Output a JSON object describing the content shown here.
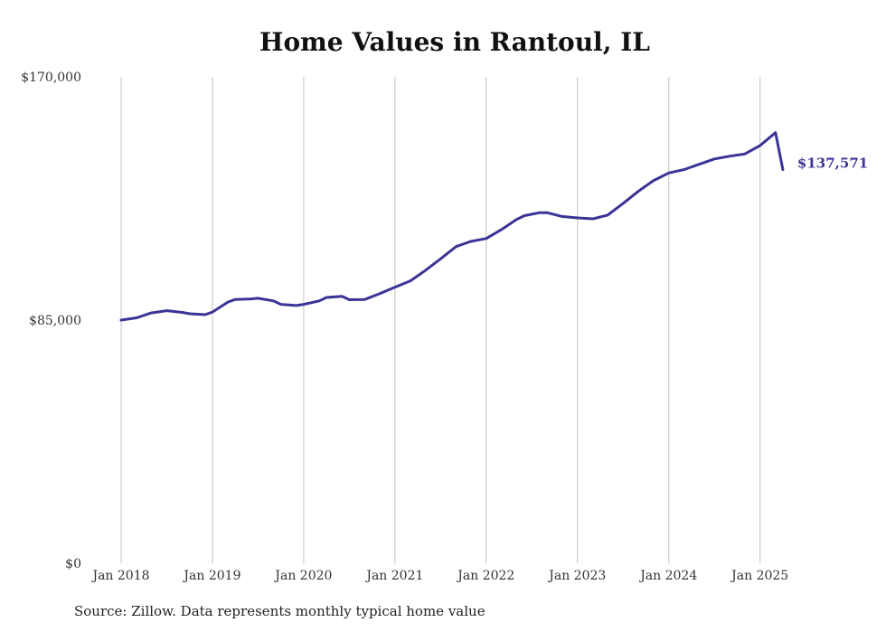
{
  "chart_data": {
    "type": "line",
    "title": "Home Values in Rantoul, IL",
    "xlabel": "",
    "ylabel": "",
    "ylim": [
      0,
      170000
    ],
    "y_ticks": [
      {
        "value": 0,
        "label": "$0"
      },
      {
        "value": 85000,
        "label": "$85,000"
      },
      {
        "value": 170000,
        "label": "$170,000"
      }
    ],
    "x_ticks": [
      {
        "value": 2018.0,
        "label": "Jan 2018"
      },
      {
        "value": 2019.0,
        "label": "Jan 2019"
      },
      {
        "value": 2020.0,
        "label": "Jan 2020"
      },
      {
        "value": 2021.0,
        "label": "Jan 2021"
      },
      {
        "value": 2022.0,
        "label": "Jan 2022"
      },
      {
        "value": 2023.0,
        "label": "Jan 2023"
      },
      {
        "value": 2024.0,
        "label": "Jan 2024"
      },
      {
        "value": 2025.0,
        "label": "Jan 2025"
      }
    ],
    "xlim": [
      2018.0,
      2025.33
    ],
    "grid": "vertical",
    "line_color": "#3b3496",
    "series": [
      {
        "end_label": "$137,571",
        "x": [
          2018.0,
          2018.17,
          2018.33,
          2018.5,
          2018.67,
          2018.75,
          2018.92,
          2019.0,
          2019.17,
          2019.25,
          2019.42,
          2019.5,
          2019.67,
          2019.75,
          2019.92,
          2020.0,
          2020.17,
          2020.25,
          2020.42,
          2020.5,
          2020.67,
          2020.83,
          2021.0,
          2021.17,
          2021.33,
          2021.5,
          2021.67,
          2021.83,
          2022.0,
          2022.17,
          2022.33,
          2022.42,
          2022.58,
          2022.67,
          2022.83,
          2023.0,
          2023.17,
          2023.33,
          2023.5,
          2023.67,
          2023.83,
          2024.0,
          2024.17,
          2024.33,
          2024.5,
          2024.67,
          2024.83,
          2025.0,
          2025.17,
          2025.25
        ],
        "y": [
          85000,
          85800,
          87500,
          88300,
          87700,
          87200,
          86900,
          87800,
          91300,
          92200,
          92400,
          92600,
          91700,
          90500,
          90100,
          90500,
          91700,
          92900,
          93300,
          92100,
          92200,
          94200,
          96500,
          98700,
          102300,
          106400,
          110700,
          112500,
          113500,
          116700,
          120100,
          121500,
          122500,
          122500,
          121200,
          120700,
          120400,
          121700,
          125800,
          130100,
          133700,
          136400,
          137600,
          139400,
          141300,
          142300,
          143000,
          146000,
          150500,
          137571
        ]
      }
    ]
  },
  "source_note": "Source: Zillow. Data represents monthly typical home value"
}
